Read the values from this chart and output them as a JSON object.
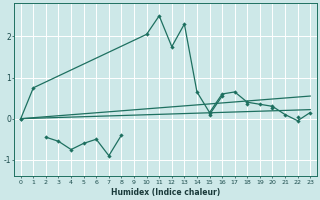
{
  "xlabel": "Humidex (Indice chaleur)",
  "background_color": "#cde8e8",
  "grid_color": "#b0d0d0",
  "line_color": "#1e7060",
  "x_data": [
    0,
    1,
    2,
    3,
    4,
    5,
    6,
    7,
    8,
    9,
    10,
    11,
    12,
    13,
    14,
    15,
    16,
    17,
    18,
    19,
    20,
    21,
    22,
    23
  ],
  "series1": [
    0.0,
    0.75,
    null,
    null,
    null,
    null,
    null,
    null,
    null,
    null,
    2.05,
    2.5,
    1.75,
    2.3,
    0.65,
    0.15,
    0.6,
    0.65,
    0.4,
    0.35,
    0.3,
    0.1,
    -0.05,
    0.15
  ],
  "series2": [
    0.0,
    null,
    -0.45,
    -0.55,
    -0.75,
    -0.6,
    -0.5,
    -0.9,
    -0.4,
    null,
    null,
    null,
    null,
    null,
    null,
    0.1,
    0.55,
    null,
    0.35,
    null,
    0.25,
    null,
    0.05,
    null
  ],
  "trend1_x": [
    0,
    23
  ],
  "trend1_y": [
    0.0,
    0.55
  ],
  "trend2_x": [
    0,
    23
  ],
  "trend2_y": [
    0.0,
    0.22
  ],
  "ylim": [
    -1.4,
    2.8
  ],
  "xlim": [
    -0.5,
    23.5
  ],
  "yticks": [
    -1,
    0,
    1,
    2
  ],
  "xticks": [
    0,
    1,
    2,
    3,
    4,
    5,
    6,
    7,
    8,
    9,
    10,
    11,
    12,
    13,
    14,
    15,
    16,
    17,
    18,
    19,
    20,
    21,
    22,
    23
  ],
  "figsize": [
    3.2,
    2.0
  ],
  "dpi": 100
}
